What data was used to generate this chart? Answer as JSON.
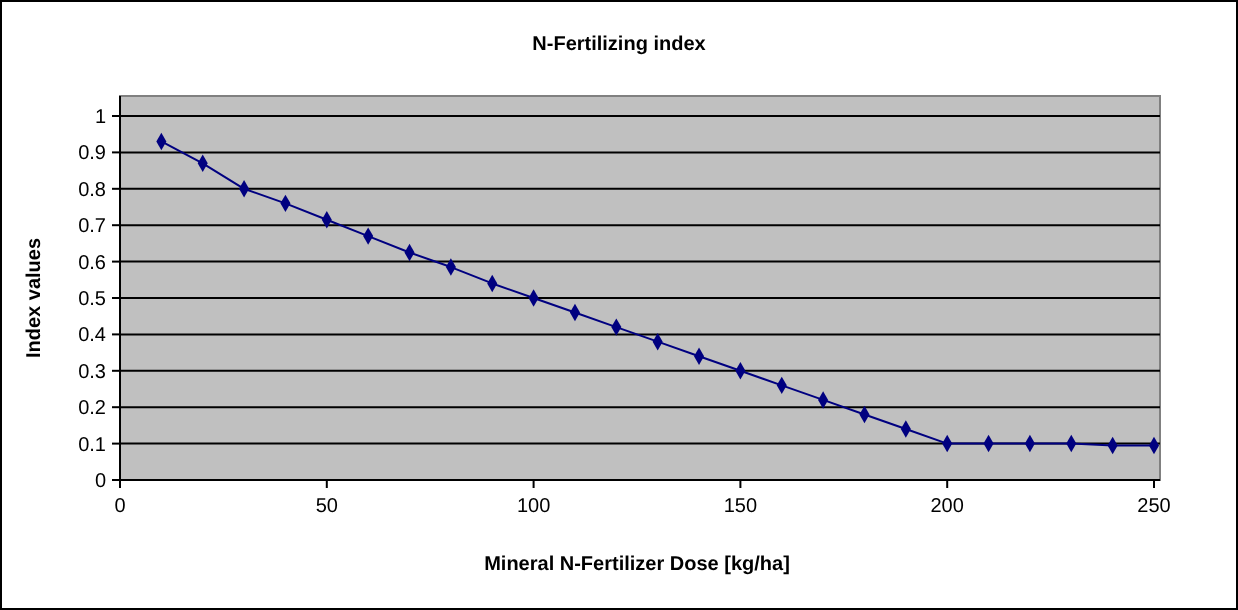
{
  "chart_data": {
    "type": "line",
    "title": "N-Fertilizing index",
    "xlabel": "Mineral N-Fertilizer Dose [kg/ha]",
    "ylabel": "Index values",
    "x": [
      10,
      20,
      30,
      40,
      50,
      60,
      70,
      80,
      90,
      100,
      110,
      120,
      130,
      140,
      150,
      160,
      170,
      180,
      190,
      200,
      210,
      220,
      230,
      240,
      250
    ],
    "series": [
      {
        "color": "#000080",
        "values": [
          0.93,
          0.87,
          0.8,
          0.76,
          0.715,
          0.67,
          0.625,
          0.585,
          0.54,
          0.5,
          0.46,
          0.42,
          0.38,
          0.34,
          0.3,
          0.26,
          0.22,
          0.18,
          0.14,
          0.1,
          0.1,
          0.1,
          0.1,
          0.095,
          0.095
        ]
      }
    ],
    "xlim": [
      0,
      250
    ],
    "xticks": [
      0,
      50,
      100,
      150,
      200,
      250
    ],
    "ylim": [
      0,
      1
    ],
    "yticks": [
      0,
      0.1,
      0.2,
      0.3,
      0.4,
      0.5,
      0.6,
      0.7,
      0.8,
      0.9,
      1
    ],
    "grid": "y",
    "marker": "diamond",
    "line_style": "solid"
  }
}
